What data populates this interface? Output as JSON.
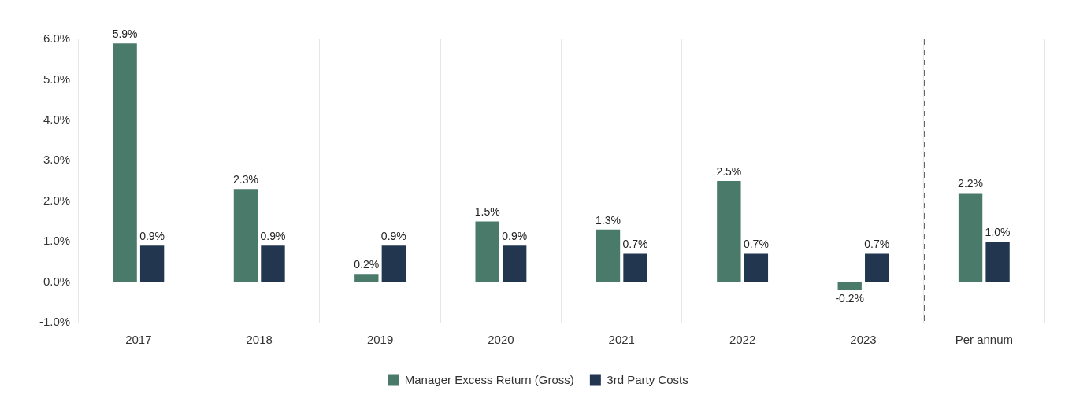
{
  "chart_data": {
    "type": "bar",
    "categories": [
      "2017",
      "2018",
      "2019",
      "2020",
      "2021",
      "2022",
      "2023",
      "Per annum"
    ],
    "series": [
      {
        "name": "Manager Excess Return (Gross)",
        "color": "#4a7a6a",
        "values": [
          5.9,
          2.3,
          0.2,
          1.5,
          1.3,
          2.5,
          -0.2,
          2.2
        ],
        "value_labels": [
          "5.9%",
          "2.3%",
          "0.2%",
          "1.5%",
          "1.3%",
          "2.5%",
          "-0.2%",
          "2.2%"
        ]
      },
      {
        "name": "3rd Party Costs",
        "color": "#22364f",
        "values": [
          0.9,
          0.9,
          0.9,
          0.9,
          0.7,
          0.7,
          0.7,
          1.0
        ],
        "value_labels": [
          "0.9%",
          "0.9%",
          "0.9%",
          "0.9%",
          "0.7%",
          "0.7%",
          "0.7%",
          "1.0%"
        ]
      }
    ],
    "ylim": [
      -1,
      6
    ],
    "yticks": [
      {
        "value": -1,
        "label": "-1.0%"
      },
      {
        "value": 0,
        "label": "0.0%"
      },
      {
        "value": 1,
        "label": "1.0%"
      },
      {
        "value": 2,
        "label": "2.0%"
      },
      {
        "value": 3,
        "label": "3.0%"
      },
      {
        "value": 4,
        "label": "4.0%"
      },
      {
        "value": 5,
        "label": "5.0%"
      },
      {
        "value": 6,
        "label": "6.0%"
      }
    ],
    "grid": "x",
    "legend": "bottom",
    "data_labels": true
  }
}
